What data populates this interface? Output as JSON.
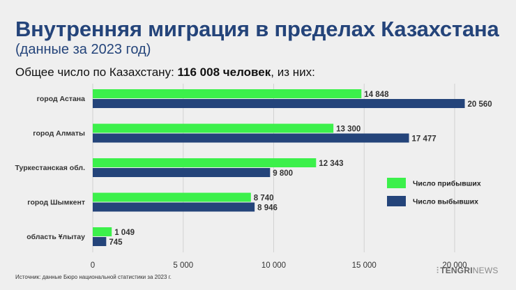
{
  "header": {
    "title": "Внутренняя миграция в пределах Казахстана",
    "subtitle": "(данные за 2023 год)",
    "total_prefix": "Общее число по Казахстану: ",
    "total_value": "116 008 человек",
    "total_suffix": ", из них:"
  },
  "chart_data": {
    "type": "bar",
    "orientation": "horizontal",
    "categories": [
      "город Астана",
      "город Алматы",
      "Туркестанская обл.",
      "город Шымкент",
      "область Ұлытау"
    ],
    "series": [
      {
        "name": "Число прибывших",
        "color": "#3cf04b",
        "values": [
          14848,
          13300,
          12343,
          8740,
          1049
        ],
        "labels": [
          "14 848",
          "13 300",
          "12 343",
          "8 740",
          "1 049"
        ]
      },
      {
        "name": "Число выбывших",
        "color": "#24447a",
        "values": [
          20560,
          17477,
          9800,
          8946,
          745
        ],
        "labels": [
          "20 560",
          "17 477",
          "9 800",
          "8 946",
          "745"
        ]
      }
    ],
    "xlim": [
      0,
      20000
    ],
    "xticks": [
      0,
      5000,
      10000,
      15000,
      20000
    ],
    "xtick_labels": [
      "0",
      "5 000",
      "10 000",
      "15 000",
      "20 000"
    ],
    "grid": true,
    "legend_position": "right"
  },
  "footer": {
    "source": "Источник: данные Бюро национальной статистики за 2023 г.",
    "logo_part1": "TENGRI",
    "logo_part2": "NEWS"
  }
}
